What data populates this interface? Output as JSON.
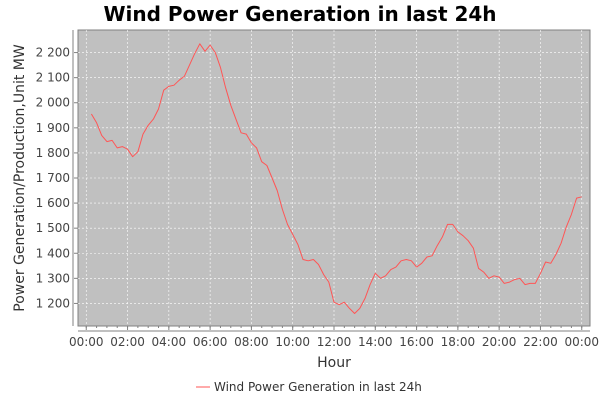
{
  "chart_data": {
    "type": "line",
    "title": "Wind Power Generation in last 24h",
    "xlabel": "Hour",
    "ylabel": "Power Generation/Production,Unit MW",
    "x_ticks": [
      "00:00",
      "02:00",
      "04:00",
      "06:00",
      "08:00",
      "10:00",
      "12:00",
      "14:00",
      "16:00",
      "18:00",
      "20:00",
      "22:00",
      "00:00"
    ],
    "y_ticks": [
      "1 200",
      "1 300",
      "1 400",
      "1 500",
      "1 600",
      "1 700",
      "1 800",
      "1 900",
      "2 000",
      "2 100",
      "2 200"
    ],
    "xlim": [
      "00:00",
      "24:00"
    ],
    "ylim": [
      1110,
      2290
    ],
    "grid": true,
    "legend_position": "bottom",
    "series": [
      {
        "name": "Wind Power Generation in last 24h",
        "color": "#ff5555",
        "x": [
          "00:15",
          "00:30",
          "00:45",
          "01:00",
          "01:15",
          "01:30",
          "01:45",
          "02:00",
          "02:15",
          "02:30",
          "02:45",
          "03:00",
          "03:15",
          "03:30",
          "03:45",
          "04:00",
          "04:15",
          "04:30",
          "04:45",
          "05:00",
          "05:15",
          "05:30",
          "05:45",
          "06:00",
          "06:15",
          "06:30",
          "06:45",
          "07:00",
          "07:15",
          "07:30",
          "07:45",
          "08:00",
          "08:15",
          "08:30",
          "08:45",
          "09:00",
          "09:15",
          "09:30",
          "09:45",
          "10:00",
          "10:15",
          "10:30",
          "10:45",
          "11:00",
          "11:15",
          "11:30",
          "11:45",
          "12:00",
          "12:15",
          "12:30",
          "12:45",
          "13:00",
          "13:15",
          "13:30",
          "13:45",
          "14:00",
          "14:15",
          "14:30",
          "14:45",
          "15:00",
          "15:15",
          "15:30",
          "15:45",
          "16:00",
          "16:15",
          "16:30",
          "16:45",
          "17:00",
          "17:15",
          "17:30",
          "17:45",
          "18:00",
          "18:15",
          "18:30",
          "18:45",
          "19:00",
          "19:15",
          "19:30",
          "19:45",
          "20:00",
          "20:15",
          "20:30",
          "20:45",
          "21:00",
          "21:15",
          "21:30",
          "21:45",
          "22:00",
          "22:15",
          "22:30",
          "22:45",
          "23:00",
          "23:15",
          "23:30",
          "23:45",
          "24:00"
        ],
        "values": [
          1955,
          1920,
          1870,
          1845,
          1850,
          1820,
          1825,
          1815,
          1785,
          1805,
          1875,
          1910,
          1935,
          1975,
          2050,
          2065,
          2070,
          2090,
          2105,
          2150,
          2195,
          2235,
          2205,
          2230,
          2200,
          2140,
          2060,
          1990,
          1935,
          1880,
          1875,
          1840,
          1820,
          1765,
          1750,
          1700,
          1650,
          1575,
          1515,
          1475,
          1435,
          1375,
          1370,
          1375,
          1355,
          1315,
          1285,
          1205,
          1195,
          1205,
          1180,
          1160,
          1180,
          1220,
          1275,
          1320,
          1300,
          1310,
          1335,
          1345,
          1370,
          1375,
          1370,
          1345,
          1360,
          1385,
          1390,
          1430,
          1465,
          1515,
          1515,
          1485,
          1470,
          1450,
          1420,
          1340,
          1325,
          1300,
          1310,
          1305,
          1280,
          1285,
          1295,
          1300,
          1275,
          1280,
          1280,
          1320,
          1365,
          1360,
          1395,
          1440,
          1505,
          1555,
          1620,
          1625
        ]
      }
    ]
  }
}
